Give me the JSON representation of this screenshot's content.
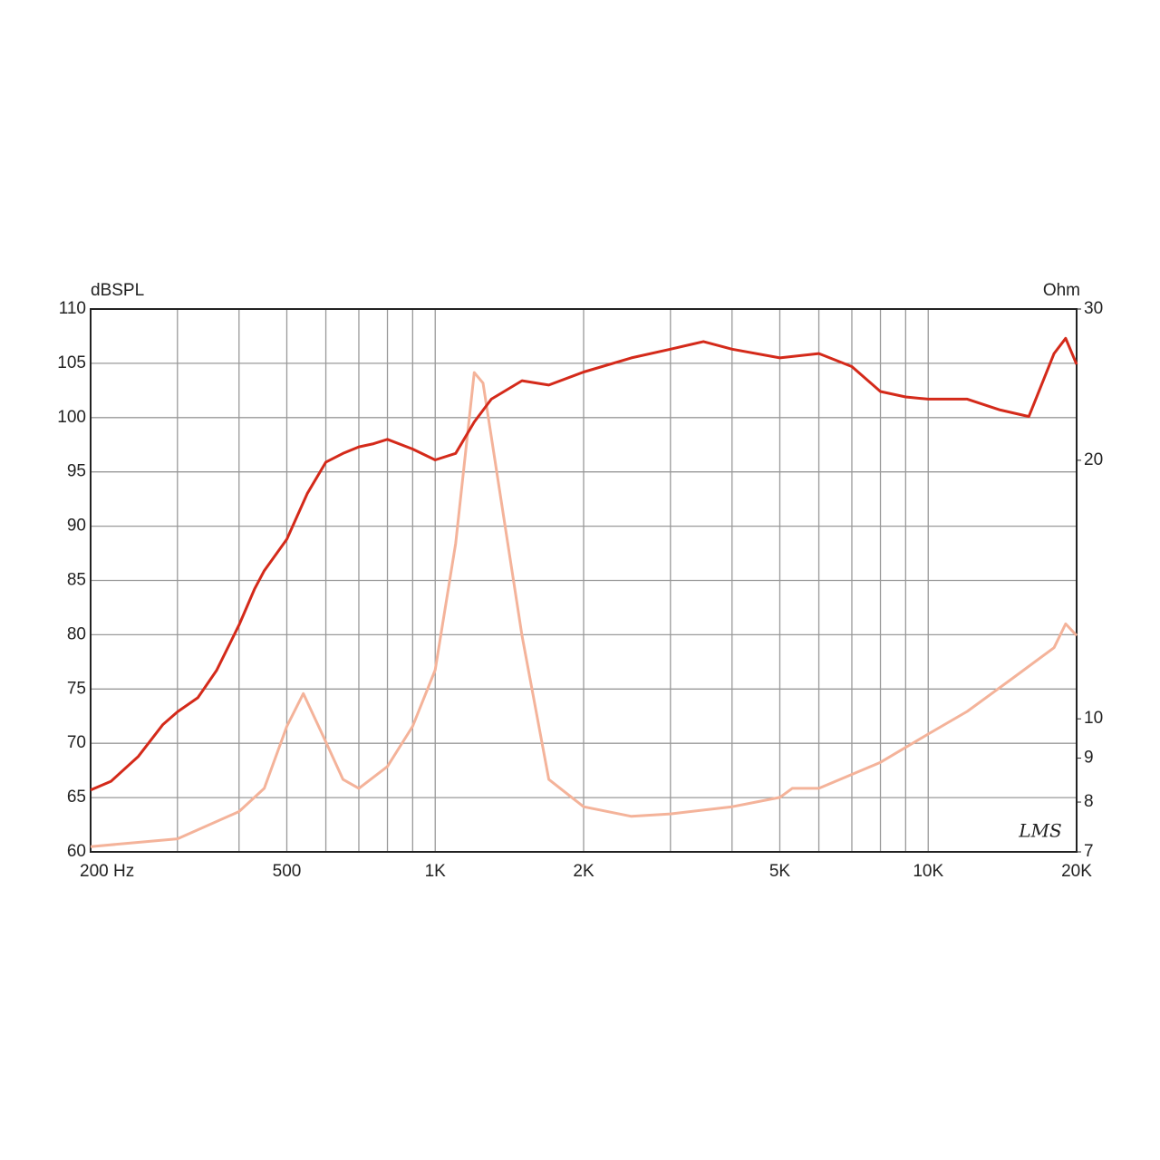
{
  "chart_data": {
    "type": "line",
    "y_label": "dBSPL",
    "y2_label": "Ohm",
    "annotation": "LMS",
    "xscale": "log",
    "y2scale": "log",
    "grid": true,
    "xlim": [
      200,
      20000
    ],
    "ylim": [
      60,
      110
    ],
    "y2lim": [
      7,
      30
    ],
    "xticks": [
      {
        "value": 200,
        "label": "200 Hz"
      },
      500,
      {
        "value": 1000,
        "label": "1K"
      },
      {
        "value": 2000,
        "label": "2K"
      },
      {
        "value": 5000,
        "label": "5K"
      },
      {
        "value": 10000,
        "label": "10K"
      },
      {
        "value": 20000,
        "label": "20K"
      }
    ],
    "xminor": [
      300,
      400,
      600,
      700,
      800,
      900,
      3000,
      4000,
      6000,
      7000,
      8000,
      9000
    ],
    "yticks": [
      60,
      65,
      70,
      75,
      80,
      85,
      90,
      95,
      100,
      105,
      110
    ],
    "y2ticks": [
      7,
      8,
      9,
      10,
      20,
      30
    ],
    "series": [
      {
        "color": "#d42a1a",
        "x": [
          200,
          220,
          250,
          280,
          300,
          330,
          360,
          400,
          430,
          450,
          500,
          550,
          600,
          650,
          700,
          750,
          800,
          900,
          1000,
          1100,
          1200,
          1300,
          1500,
          1700,
          2000,
          2500,
          3000,
          3500,
          4000,
          5000,
          6000,
          7000,
          8000,
          9000,
          10000,
          12000,
          14000,
          16000,
          18000,
          19000,
          20000
        ],
        "values": [
          65.7,
          66.5,
          68.8,
          71.7,
          72.9,
          74.2,
          76.7,
          80.9,
          84.2,
          85.9,
          88.8,
          93,
          95.9,
          96.7,
          97.3,
          97.6,
          98,
          97.1,
          96.1,
          96.7,
          99.6,
          101.7,
          103.4,
          103,
          104.2,
          105.5,
          106.3,
          107,
          106.3,
          105.5,
          105.9,
          104.7,
          102.4,
          101.9,
          101.7,
          101.7,
          100.7,
          100.1,
          105.9,
          107.3,
          104.9
        ]
      },
      {
        "color": "#f4b39a",
        "axis": "y2",
        "x": [
          200,
          300,
          400,
          450,
          500,
          540,
          600,
          650,
          700,
          800,
          900,
          1000,
          1100,
          1200,
          1250,
          1350,
          1500,
          1700,
          2000,
          2500,
          3000,
          4000,
          5000,
          5300,
          6000,
          8000,
          10000,
          12000,
          15000,
          18000,
          19000,
          20000
        ],
        "values": [
          7.1,
          7.25,
          7.8,
          8.3,
          9.8,
          10.7,
          9.4,
          8.5,
          8.3,
          8.8,
          9.8,
          11.4,
          16,
          25.3,
          24.6,
          18.5,
          12.5,
          8.5,
          7.9,
          7.7,
          7.75,
          7.9,
          8.1,
          8.3,
          8.3,
          8.9,
          9.6,
          10.2,
          11.2,
          12.1,
          12.9,
          12.5
        ]
      }
    ]
  }
}
